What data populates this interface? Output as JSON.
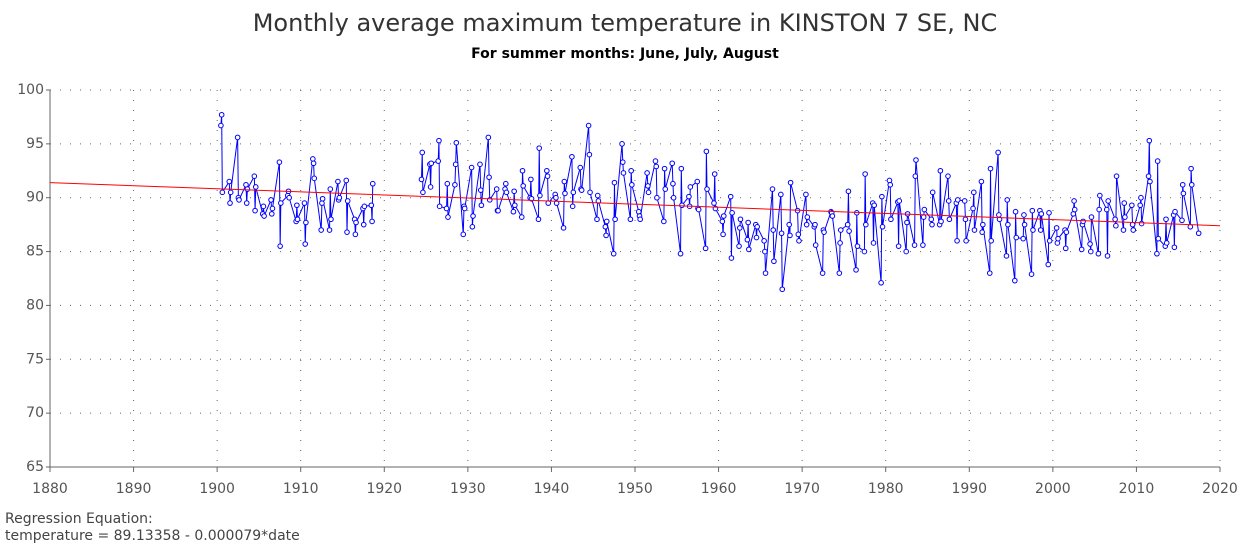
{
  "chart_data": {
    "type": "line",
    "title": "Monthly average maximum temperature in KINSTON 7 SE, NC",
    "subtitle": "For summer months: June, July, August",
    "annotations": [
      "Regression Equation:",
      "temperature =  89.13358 - 0.000079*date"
    ],
    "xlim": [
      1880,
      2020
    ],
    "xticks": [
      1880,
      1890,
      1900,
      1910,
      1920,
      1930,
      1940,
      1950,
      1960,
      1970,
      1980,
      1990,
      2000,
      2010,
      2020
    ],
    "ylim": [
      65,
      100
    ],
    "yticks": [
      65,
      70,
      75,
      80,
      85,
      90,
      95,
      100
    ],
    "grid": true,
    "series": [
      {
        "color": "#0000ff",
        "marker": "circle",
        "x": [
          1900.45,
          1900.54,
          1900.62,
          1901.45,
          1901.54,
          1901.62,
          1902.45,
          1902.54,
          1902.62,
          1903.45,
          1903.54,
          1903.62,
          1904.45,
          1904.54,
          1904.62,
          1905.45,
          1905.54,
          1905.62,
          1906.45,
          1906.54,
          1906.62,
          1907.45,
          1907.54,
          1907.62,
          1908.45,
          1908.54,
          1908.62,
          1909.45,
          1909.54,
          1909.62,
          1910.45,
          1910.54,
          1910.62,
          1911.45,
          1911.54,
          1911.62,
          1912.45,
          1912.54,
          1912.62,
          1913.45,
          1913.54,
          1913.62,
          1914.45,
          1914.54,
          1914.62,
          1915.45,
          1915.54,
          1915.62,
          1916.45,
          1916.54,
          1916.62,
          1917.45,
          1917.54,
          1917.62,
          1918.45,
          1918.54,
          1918.62,
          1921,
          1924.45,
          1924.54,
          1924.62,
          1925.45,
          1925.54,
          1925.62,
          1926.45,
          1926.54,
          1926.62,
          1927.45,
          1927.54,
          1927.62,
          1928.45,
          1928.54,
          1928.62,
          1929.45,
          1929.54,
          1929.62,
          1930.45,
          1930.54,
          1930.62,
          1931.45,
          1931.54,
          1931.62,
          1932.45,
          1932.54,
          1932.62,
          1933.45,
          1933.54,
          1933.62,
          1934.45,
          1934.54,
          1934.62,
          1935.45,
          1935.54,
          1935.62,
          1936.45,
          1936.54,
          1936.62,
          1937.45,
          1937.54,
          1937.62,
          1938.45,
          1938.54,
          1938.62,
          1939.45,
          1939.54,
          1939.62,
          1940.45,
          1940.54,
          1940.62,
          1941.45,
          1941.54,
          1941.62,
          1942.45,
          1942.54,
          1942.62,
          1943.45,
          1943.54,
          1943.62,
          1944.45,
          1944.54,
          1944.62,
          1945.45,
          1945.54,
          1945.62,
          1946.45,
          1946.54,
          1946.62,
          1947.45,
          1947.54,
          1947.62,
          1948.45,
          1948.54,
          1948.62,
          1949.45,
          1949.54,
          1949.62,
          1950.45,
          1950.54,
          1950.62,
          1951.45,
          1951.54,
          1951.62,
          1952.45,
          1952.54,
          1952.62,
          1953.45,
          1953.54,
          1953.62,
          1954.45,
          1954.54,
          1954.62,
          1955.45,
          1955.54,
          1955.62,
          1956.45,
          1956.54,
          1956.62,
          1957.45,
          1957.54,
          1957.62,
          1958.45,
          1958.54,
          1958.62,
          1959.45,
          1959.54,
          1959.62,
          1960.45,
          1960.54,
          1960.62,
          1961.45,
          1961.54,
          1961.62,
          1962.45,
          1962.54,
          1962.62,
          1963.45,
          1963.54,
          1963.62,
          1964.45,
          1964.54,
          1964.62,
          1965.45,
          1965.54,
          1965.62,
          1966.45,
          1966.54,
          1966.62,
          1967.45,
          1967.54,
          1967.62,
          1968.45,
          1968.54,
          1968.62,
          1969.45,
          1969.54,
          1969.62,
          1970.45,
          1970.54,
          1970.62,
          1971.45,
          1971.54,
          1971.62,
          1972.45,
          1972.54,
          1972.62,
          1973.45,
          1973.54,
          1973.62,
          1974.45,
          1974.54,
          1974.62,
          1975.45,
          1975.54,
          1975.62,
          1976.45,
          1976.54,
          1976.62,
          1977.45,
          1977.54,
          1977.62,
          1978.45,
          1978.54,
          1978.62,
          1979.45,
          1979.54,
          1979.62,
          1980.45,
          1980.54,
          1980.62,
          1981.45,
          1981.54,
          1981.62,
          1982.45,
          1982.54,
          1982.62,
          1983.45,
          1983.54,
          1983.62,
          1984.45,
          1984.54,
          1984.62,
          1985.45,
          1985.54,
          1985.62,
          1986.45,
          1986.54,
          1986.62,
          1987.45,
          1987.54,
          1987.62,
          1988.45,
          1988.54,
          1988.62,
          1989.45,
          1989.54,
          1989.62,
          1990.45,
          1990.54,
          1990.62,
          1991.45,
          1991.54,
          1991.62,
          1992.45,
          1992.54,
          1992.62,
          1993.45,
          1993.54,
          1993.62,
          1994.45,
          1994.54,
          1994.62,
          1995.45,
          1995.54,
          1995.62,
          1996.45,
          1996.54,
          1996.62,
          1997.45,
          1997.54,
          1997.62,
          1998.45,
          1998.54,
          1998.62,
          1999.45,
          1999.54,
          1999.62,
          2000.45,
          2000.54,
          2000.62,
          2001.45,
          2001.54,
          2001.62,
          2002.45,
          2002.54,
          2002.62,
          2003.45,
          2003.54,
          2003.62,
          2004.45,
          2004.54,
          2004.62,
          2005.45,
          2005.54,
          2005.62,
          2006.45,
          2006.54,
          2006.62,
          2007.45,
          2007.54,
          2007.62,
          2008.45,
          2008.54,
          2008.62,
          2009.45,
          2009.54,
          2009.62,
          2010.45,
          2010.54,
          2010.62,
          2011.45,
          2011.54,
          2011.62,
          2012.45,
          2012.54,
          2012.62,
          2013.45,
          2013.54,
          2013.62,
          2014.45,
          2014.54,
          2014.62,
          2015.45,
          2015.54,
          2015.62,
          2016.45,
          2016.54,
          2016.62,
          2017.45
        ],
        "values": [
          96.7,
          97.7,
          90.5,
          91.5,
          89.5,
          90.5,
          95.6,
          90.0,
          89.8,
          91.2,
          89.5,
          90.8,
          92.0,
          88.8,
          91.0,
          88.5,
          89.2,
          88.3,
          89.8,
          88.5,
          89.0,
          93.3,
          85.5,
          89.5,
          90.2,
          90.6,
          90.0,
          87.8,
          89.3,
          88.0,
          89.5,
          85.7,
          87.7,
          93.6,
          93.2,
          91.8,
          87.0,
          89.5,
          89.9,
          87.0,
          90.8,
          88.0,
          91.5,
          89.8,
          90.0,
          91.6,
          86.8,
          89.7,
          88.0,
          86.6,
          87.7,
          89.0,
          87.5,
          89.2,
          89.3,
          87.8,
          91.3,
          null,
          91.7,
          94.2,
          90.5,
          93.1,
          91.0,
          93.2,
          93.4,
          95.3,
          89.2,
          89.0,
          91.3,
          88.2,
          91.2,
          93.1,
          95.1,
          86.6,
          89.2,
          89.0,
          92.8,
          87.3,
          88.3,
          93.1,
          90.7,
          89.3,
          95.6,
          91.9,
          89.8,
          90.8,
          88.8,
          88.8,
          90.8,
          91.3,
          90.5,
          88.7,
          90.6,
          89.3,
          88.2,
          92.5,
          91.1,
          90.0,
          91.7,
          89.9,
          88.0,
          94.6,
          90.2,
          92.5,
          92.0,
          89.5,
          90.3,
          90.0,
          89.5,
          87.2,
          91.5,
          90.4,
          93.8,
          89.2,
          90.5,
          92.8,
          90.8,
          90.7,
          96.7,
          94.0,
          90.5,
          88.0,
          90.2,
          89.7,
          87.3,
          86.5,
          87.8,
          84.8,
          91.4,
          88.0,
          95.0,
          93.3,
          92.3,
          88.0,
          92.5,
          91.2,
          88.7,
          88.3,
          88.0,
          92.3,
          91.1,
          90.5,
          93.4,
          92.9,
          90.0,
          87.8,
          92.7,
          90.8,
          93.2,
          91.3,
          90.0,
          84.8,
          92.7,
          89.3,
          90.1,
          89.2,
          91.0,
          91.5,
          89.0,
          88.9,
          85.3,
          94.3,
          90.8,
          89.5,
          92.2,
          89.0,
          87.8,
          86.6,
          88.3,
          90.1,
          84.4,
          88.6,
          85.5,
          87.2,
          88.0,
          86.1,
          87.7,
          85.2,
          87.5,
          86.3,
          87.3,
          86.0,
          85.0,
          83.0,
          90.8,
          87.0,
          84.1,
          90.3,
          86.7,
          81.5,
          87.5,
          86.5,
          91.4,
          88.8,
          86.6,
          86.0,
          90.3,
          87.5,
          88.2,
          87.3,
          87.5,
          85.6,
          83.0,
          87.0,
          86.8,
          88.7,
          88.6,
          88.3,
          83.0,
          85.8,
          87.0,
          87.5,
          90.6,
          86.9,
          83.3,
          88.6,
          85.5,
          85.0,
          92.2,
          87.5,
          89.5,
          85.8,
          89.3,
          82.1,
          90.1,
          87.3,
          91.6,
          91.2,
          88.0,
          89.6,
          85.5,
          89.7,
          85.0,
          87.7,
          88.5,
          85.6,
          92.0,
          93.5,
          85.6,
          88.2,
          88.9,
          88.0,
          87.5,
          90.5,
          87.5,
          92.5,
          87.8,
          92.0,
          89.7,
          88.0,
          89.5,
          86.0,
          89.8,
          89.7,
          88.0,
          86.0,
          89.0,
          90.5,
          87.0,
          91.5,
          86.8,
          87.5,
          83.0,
          92.7,
          86.0,
          94.2,
          88.4,
          88.0,
          84.6,
          89.8,
          87.5,
          82.3,
          88.7,
          86.3,
          86.2,
          88.4,
          87.5,
          82.9,
          88.8,
          87.0,
          88.8,
          87.0,
          88.5,
          83.8,
          88.6,
          86.0,
          87.2,
          85.8,
          86.2,
          87.0,
          85.3,
          86.8,
          88.5,
          89.7,
          88.9,
          85.2,
          87.5,
          87.8,
          85.7,
          85.0,
          88.2,
          84.8,
          88.9,
          90.2,
          88.9,
          84.6,
          89.7,
          88.0,
          87.4,
          92.0,
          87.0,
          89.5,
          88.2,
          89.3,
          87.5,
          87.0,
          89.3,
          90.0,
          87.6,
          92.0,
          95.3,
          91.5,
          84.8,
          93.4,
          86.2,
          85.5,
          88.0,
          85.8,
          88.4,
          85.4,
          88.7,
          87.9,
          91.2,
          90.4,
          87.3,
          92.7,
          91.2,
          86.7
        ]
      },
      {
        "color": "#ff0000",
        "x": [
          1880,
          2020
        ],
        "values": [
          91.4,
          87.4
        ]
      }
    ]
  }
}
